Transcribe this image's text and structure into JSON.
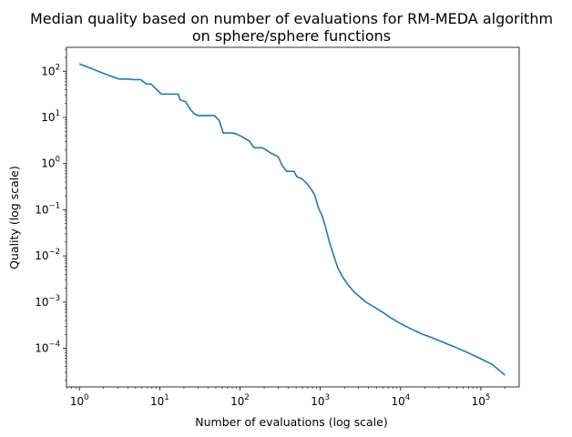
{
  "chart_data": {
    "type": "line",
    "title": "Median quality based on number of evaluations for RM-MEDA algorithm",
    "subtitle": "on sphere/sphere functions",
    "xlabel": "Number of evaluations (log scale)",
    "ylabel": "Quality (log scale)",
    "x_scale": "log",
    "y_scale": "log",
    "xlim": [
      0.69,
      300000
    ],
    "ylim": [
      1.45e-05,
      330
    ],
    "x_ticks": [
      {
        "base": "10",
        "exp": "0",
        "value": 1
      },
      {
        "base": "10",
        "exp": "1",
        "value": 10
      },
      {
        "base": "10",
        "exp": "2",
        "value": 100
      },
      {
        "base": "10",
        "exp": "3",
        "value": 1000
      },
      {
        "base": "10",
        "exp": "4",
        "value": 10000
      },
      {
        "base": "10",
        "exp": "5",
        "value": 100000
      }
    ],
    "y_ticks": [
      {
        "base": "10",
        "exp": "−4",
        "value": 0.0001
      },
      {
        "base": "10",
        "exp": "−3",
        "value": 0.001
      },
      {
        "base": "10",
        "exp": "−2",
        "value": 0.01
      },
      {
        "base": "10",
        "exp": "−1",
        "value": 0.1
      },
      {
        "base": "10",
        "exp": "0",
        "value": 1
      },
      {
        "base": "10",
        "exp": "1",
        "value": 10
      },
      {
        "base": "10",
        "exp": "2",
        "value": 100
      }
    ],
    "grid": false,
    "series": [
      {
        "color": "#1f77b4",
        "points": [
          [
            1.0,
            145
          ],
          [
            1.6,
            105
          ],
          [
            2.3,
            82
          ],
          [
            3.1,
            68
          ],
          [
            4.0,
            68
          ],
          [
            4.6,
            66
          ],
          [
            5.8,
            66
          ],
          [
            6.8,
            53
          ],
          [
            7.8,
            53
          ],
          [
            9.2,
            40
          ],
          [
            10.5,
            32
          ],
          [
            14,
            32
          ],
          [
            17,
            32
          ],
          [
            18,
            24
          ],
          [
            21,
            22
          ],
          [
            24,
            15
          ],
          [
            27,
            12
          ],
          [
            30,
            11
          ],
          [
            38,
            11
          ],
          [
            48,
            11
          ],
          [
            55,
            8.6
          ],
          [
            62,
            4.6
          ],
          [
            80,
            4.6
          ],
          [
            90,
            4.4
          ],
          [
            110,
            3.7
          ],
          [
            130,
            3.1
          ],
          [
            150,
            2.2
          ],
          [
            190,
            2.2
          ],
          [
            210,
            2.0
          ],
          [
            240,
            1.7
          ],
          [
            300,
            1.4
          ],
          [
            330,
            0.95
          ],
          [
            380,
            0.68
          ],
          [
            470,
            0.68
          ],
          [
            510,
            0.52
          ],
          [
            600,
            0.46
          ],
          [
            670,
            0.38
          ],
          [
            750,
            0.3
          ],
          [
            850,
            0.21
          ],
          [
            950,
            0.11
          ],
          [
            1050,
            0.075
          ],
          [
            1150,
            0.045
          ],
          [
            1300,
            0.02
          ],
          [
            1450,
            0.011
          ],
          [
            1650,
            0.0055
          ],
          [
            1900,
            0.0035
          ],
          [
            2200,
            0.0024
          ],
          [
            2600,
            0.0017
          ],
          [
            3100,
            0.0013
          ],
          [
            3700,
            0.001
          ],
          [
            4700,
            0.00078
          ],
          [
            6000,
            0.0006
          ],
          [
            7500,
            0.00046
          ],
          [
            9500,
            0.00036
          ],
          [
            12000,
            0.00029
          ],
          [
            15000,
            0.00024
          ],
          [
            19000,
            0.0002
          ],
          [
            24000,
            0.000172
          ],
          [
            30000,
            0.000147
          ],
          [
            38000,
            0.000124
          ],
          [
            50000,
            0.000102
          ],
          [
            70000,
            7.9e-05
          ],
          [
            100000,
            5.9e-05
          ],
          [
            140000,
            4.4e-05
          ],
          [
            200000,
            2.6e-05
          ]
        ]
      }
    ]
  }
}
